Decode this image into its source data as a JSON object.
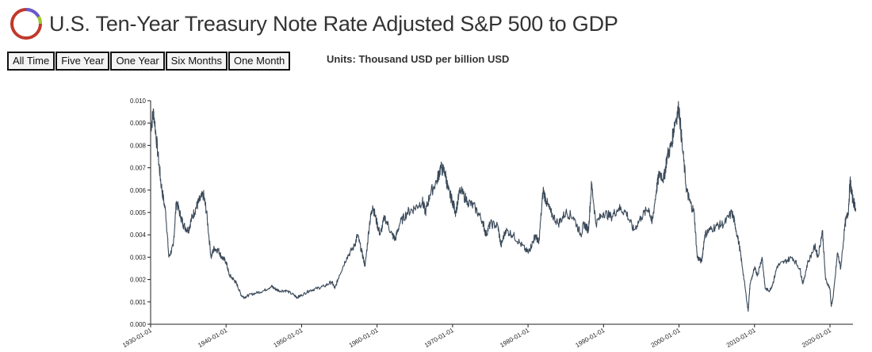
{
  "header": {
    "title": "U.S. Ten-Year Treasury Note Rate Adjusted S&P 500 to GDP",
    "logo_icon": "ring-logo-icon",
    "logo_colors": [
      "#c0392b",
      "#6a5acd",
      "#8e44ad",
      "#9acd32"
    ]
  },
  "range_buttons": [
    {
      "label": "All Time"
    },
    {
      "label": "Five Year"
    },
    {
      "label": "One Year"
    },
    {
      "label": "Six Months"
    },
    {
      "label": "One Month"
    }
  ],
  "units_label": "Units: Thousand USD per billion USD",
  "colors": {
    "line": "#3b4a5a",
    "axis": "#222222"
  },
  "chart_data": {
    "type": "line",
    "title": "U.S. Ten-Year Treasury Note Rate Adjusted S&P 500 to GDP",
    "xlabel": "",
    "ylabel": "",
    "x_range": [
      "1930-01-01",
      "2023-06-01"
    ],
    "ylim": [
      0,
      0.01
    ],
    "grid": false,
    "y_ticks": [
      "0.000",
      "0.001",
      "0.002",
      "0.003",
      "0.004",
      "0.005",
      "0.006",
      "0.007",
      "0.008",
      "0.009",
      "0.010"
    ],
    "x_ticks": [
      "1930-01-01",
      "1940-01-01",
      "1950-01-01",
      "1960-01-01",
      "1970-01-01",
      "1980-01-01",
      "1990-01-01",
      "2000-01-01",
      "2010-01-01",
      "2020-01-01"
    ],
    "series": [
      {
        "points": [
          [
            "1930-01-01",
            0.0088
          ],
          [
            "1930-06-01",
            0.0095
          ],
          [
            "1931-01-01",
            0.0075
          ],
          [
            "1931-06-01",
            0.0062
          ],
          [
            "1932-01-01",
            0.005
          ],
          [
            "1932-06-01",
            0.003
          ],
          [
            "1933-01-01",
            0.0035
          ],
          [
            "1933-06-01",
            0.0055
          ],
          [
            "1934-01-01",
            0.0048
          ],
          [
            "1934-06-01",
            0.0044
          ],
          [
            "1935-01-01",
            0.0042
          ],
          [
            "1935-06-01",
            0.0047
          ],
          [
            "1936-01-01",
            0.0052
          ],
          [
            "1936-06-01",
            0.0055
          ],
          [
            "1937-01-01",
            0.0058
          ],
          [
            "1937-06-01",
            0.005
          ],
          [
            "1938-01-01",
            0.003
          ],
          [
            "1938-06-01",
            0.0034
          ],
          [
            "1939-01-01",
            0.0033
          ],
          [
            "1939-06-01",
            0.003
          ],
          [
            "1940-01-01",
            0.0028
          ],
          [
            "1940-06-01",
            0.0022
          ],
          [
            "1941-01-01",
            0.002
          ],
          [
            "1941-06-01",
            0.0018
          ],
          [
            "1942-01-01",
            0.0013
          ],
          [
            "1942-06-01",
            0.0012
          ],
          [
            "1943-01-01",
            0.0013
          ],
          [
            "1944-01-01",
            0.0014
          ],
          [
            "1945-01-01",
            0.0015
          ],
          [
            "1946-01-01",
            0.0017
          ],
          [
            "1946-06-01",
            0.0016
          ],
          [
            "1947-01-01",
            0.0015
          ],
          [
            "1948-01-01",
            0.0015
          ],
          [
            "1949-01-01",
            0.0013
          ],
          [
            "1949-06-01",
            0.0012
          ],
          [
            "1950-01-01",
            0.0013
          ],
          [
            "1951-01-01",
            0.0015
          ],
          [
            "1952-01-01",
            0.0016
          ],
          [
            "1953-01-01",
            0.0017
          ],
          [
            "1954-01-01",
            0.0019
          ],
          [
            "1954-06-01",
            0.0016
          ],
          [
            "1955-01-01",
            0.0022
          ],
          [
            "1956-01-01",
            0.003
          ],
          [
            "1957-01-01",
            0.0035
          ],
          [
            "1957-06-01",
            0.004
          ],
          [
            "1958-01-01",
            0.0032
          ],
          [
            "1958-06-01",
            0.0026
          ],
          [
            "1959-01-01",
            0.0045
          ],
          [
            "1959-06-01",
            0.0053
          ],
          [
            "1960-01-01",
            0.0045
          ],
          [
            "1960-06-01",
            0.004
          ],
          [
            "1961-01-01",
            0.0048
          ],
          [
            "1962-01-01",
            0.004
          ],
          [
            "1962-06-01",
            0.0038
          ],
          [
            "1963-01-01",
            0.0045
          ],
          [
            "1964-01-01",
            0.005
          ],
          [
            "1965-01-01",
            0.0052
          ],
          [
            "1966-01-01",
            0.0055
          ],
          [
            "1966-06-01",
            0.005
          ],
          [
            "1967-01-01",
            0.0058
          ],
          [
            "1968-01-01",
            0.0065
          ],
          [
            "1968-06-01",
            0.007
          ],
          [
            "1969-01-01",
            0.0068
          ],
          [
            "1969-06-01",
            0.006
          ],
          [
            "1970-01-01",
            0.0055
          ],
          [
            "1970-06-01",
            0.005
          ],
          [
            "1971-01-01",
            0.006
          ],
          [
            "1972-01-01",
            0.0055
          ],
          [
            "1973-01-01",
            0.0052
          ],
          [
            "1974-01-01",
            0.0046
          ],
          [
            "1974-06-01",
            0.004
          ],
          [
            "1975-01-01",
            0.0045
          ],
          [
            "1976-01-01",
            0.0044
          ],
          [
            "1976-06-01",
            0.0035
          ],
          [
            "1977-01-01",
            0.0042
          ],
          [
            "1978-01-01",
            0.004
          ],
          [
            "1979-01-01",
            0.0036
          ],
          [
            "1980-01-01",
            0.0032
          ],
          [
            "1980-06-01",
            0.0035
          ],
          [
            "1981-01-01",
            0.004
          ],
          [
            "1981-06-01",
            0.0036
          ],
          [
            "1982-01-01",
            0.006
          ],
          [
            "1982-06-01",
            0.0055
          ],
          [
            "1983-01-01",
            0.005
          ],
          [
            "1984-01-01",
            0.0045
          ],
          [
            "1985-01-01",
            0.005
          ],
          [
            "1986-01-01",
            0.0048
          ],
          [
            "1987-01-01",
            0.004
          ],
          [
            "1987-06-01",
            0.0045
          ],
          [
            "1988-01-01",
            0.0042
          ],
          [
            "1988-06-01",
            0.0063
          ],
          [
            "1989-01-01",
            0.0045
          ],
          [
            "1990-01-01",
            0.005
          ],
          [
            "1991-01-01",
            0.0048
          ],
          [
            "1992-01-01",
            0.0052
          ],
          [
            "1993-01-01",
            0.005
          ],
          [
            "1994-01-01",
            0.0042
          ],
          [
            "1995-01-01",
            0.0048
          ],
          [
            "1996-01-01",
            0.0052
          ],
          [
            "1996-06-01",
            0.0045
          ],
          [
            "1997-01-01",
            0.006
          ],
          [
            "1997-06-01",
            0.0068
          ],
          [
            "1998-01-01",
            0.0065
          ],
          [
            "1998-06-01",
            0.0075
          ],
          [
            "1999-01-01",
            0.008
          ],
          [
            "1999-06-01",
            0.009
          ],
          [
            "2000-01-01",
            0.0097
          ],
          [
            "2000-06-01",
            0.008
          ],
          [
            "2001-01-01",
            0.006
          ],
          [
            "2001-06-01",
            0.0055
          ],
          [
            "2002-01-01",
            0.005
          ],
          [
            "2002-06-01",
            0.003
          ],
          [
            "2003-01-01",
            0.0028
          ],
          [
            "2003-06-01",
            0.004
          ],
          [
            "2004-01-01",
            0.0042
          ],
          [
            "2005-01-01",
            0.0044
          ],
          [
            "2006-01-01",
            0.0045
          ],
          [
            "2007-01-01",
            0.005
          ],
          [
            "2007-06-01",
            0.0045
          ],
          [
            "2008-01-01",
            0.0035
          ],
          [
            "2008-06-01",
            0.0025
          ],
          [
            "2009-01-01",
            0.001
          ],
          [
            "2009-03-01",
            0.0006
          ],
          [
            "2009-06-01",
            0.0018
          ],
          [
            "2010-01-01",
            0.0025
          ],
          [
            "2010-06-01",
            0.0022
          ],
          [
            "2011-01-01",
            0.003
          ],
          [
            "2011-06-01",
            0.0016
          ],
          [
            "2012-01-01",
            0.0015
          ],
          [
            "2012-06-01",
            0.0018
          ],
          [
            "2013-01-01",
            0.0026
          ],
          [
            "2014-01-01",
            0.0028
          ],
          [
            "2015-01-01",
            0.003
          ],
          [
            "2016-01-01",
            0.0025
          ],
          [
            "2016-06-01",
            0.0018
          ],
          [
            "2017-01-01",
            0.0027
          ],
          [
            "2018-01-01",
            0.0035
          ],
          [
            "2018-06-01",
            0.003
          ],
          [
            "2019-01-01",
            0.0042
          ],
          [
            "2019-06-01",
            0.002
          ],
          [
            "2020-01-01",
            0.0016
          ],
          [
            "2020-03-01",
            0.0008
          ],
          [
            "2020-06-01",
            0.0012
          ],
          [
            "2021-01-01",
            0.0032
          ],
          [
            "2021-06-01",
            0.0025
          ],
          [
            "2022-01-01",
            0.0045
          ],
          [
            "2022-06-01",
            0.005
          ],
          [
            "2022-09-01",
            0.0064
          ],
          [
            "2023-01-01",
            0.0056
          ],
          [
            "2023-06-01",
            0.0052
          ]
        ]
      }
    ]
  }
}
